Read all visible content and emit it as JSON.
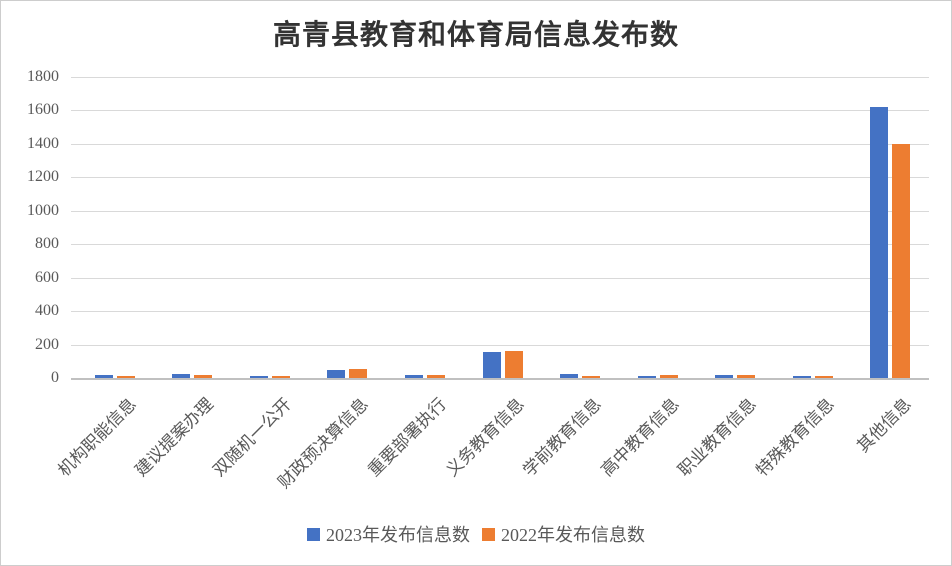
{
  "chart_data": {
    "type": "bar",
    "title": "高青县教育和体育局信息发布数",
    "categories": [
      "机构职能信息",
      "建议提案办理",
      "双随机一公开",
      "财政预决算信息",
      "重要部署执行",
      "义务教育信息",
      "学前教育信息",
      "高中教育信息",
      "职业教育信息",
      "特殊教育信息",
      "其他信息"
    ],
    "series": [
      {
        "name": "2023年发布信息数",
        "color": "#4472C4",
        "values": [
          20,
          22,
          12,
          50,
          20,
          158,
          22,
          13,
          16,
          14,
          1620
        ]
      },
      {
        "name": "2022年发布信息数",
        "color": "#ED7D31",
        "values": [
          12,
          20,
          10,
          52,
          18,
          160,
          12,
          15,
          16,
          14,
          1400
        ]
      }
    ],
    "ylim": [
      0,
      1800
    ],
    "ytick_interval": 200,
    "yticks": [
      0,
      200,
      400,
      600,
      800,
      1000,
      1200,
      1400,
      1600,
      1800
    ],
    "xlabel": "",
    "ylabel": "",
    "grid": true,
    "legend_position": "bottom",
    "x_label_rotation_deg": 45
  },
  "ui": {
    "background": "#ffffff",
    "border_color": "#cdcdcd",
    "grid_color": "#d9d9d9",
    "axis_line_color": "#c0c0c0",
    "text_color": "#595959",
    "title_color": "#333333"
  }
}
